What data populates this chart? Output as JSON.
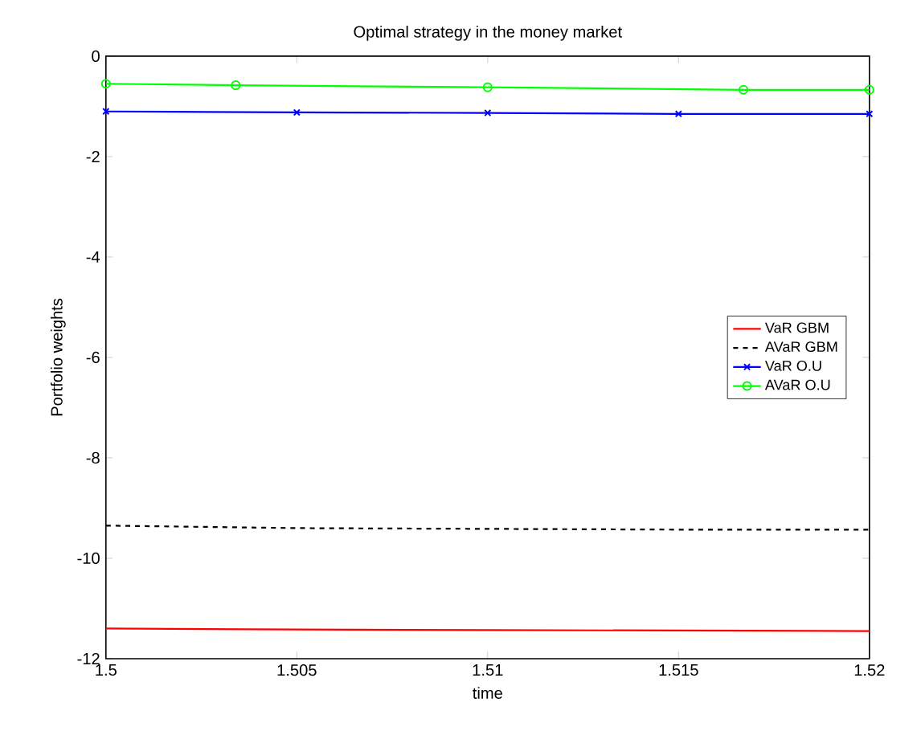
{
  "chart_data": {
    "type": "line",
    "title": "Optimal strategy in the money market",
    "xlabel": "time",
    "ylabel": "Portfolio weights",
    "xlim": [
      1.5,
      1.52
    ],
    "xticks": [
      1.5,
      1.505,
      1.51,
      1.515,
      1.52
    ],
    "ylim": [
      -12,
      0
    ],
    "yticks": [
      -12,
      -10,
      -8,
      -6,
      -4,
      -2,
      0
    ],
    "legend": "right",
    "grid": false,
    "series": [
      {
        "name": "VaR GBM",
        "color": "#ff0000",
        "line_style": "solid",
        "marker": "none",
        "x": [
          1.5,
          1.505,
          1.51,
          1.515,
          1.52
        ],
        "values": [
          -11.4,
          -11.42,
          -11.43,
          -11.44,
          -11.45
        ]
      },
      {
        "name": "AVaR GBM",
        "color": "#000000",
        "line_style": "dashed",
        "marker": "none",
        "x": [
          1.5,
          1.505,
          1.515,
          1.52
        ],
        "values": [
          -9.35,
          -9.4,
          -9.43,
          -9.43
        ]
      },
      {
        "name": "VaR O.U",
        "color": "#0000ff",
        "line_style": "solid",
        "marker": "cross",
        "x": [
          1.5,
          1.505,
          1.51,
          1.515,
          1.52
        ],
        "values": [
          -1.1,
          -1.12,
          -1.13,
          -1.15,
          -1.15
        ]
      },
      {
        "name": "AVaR O.U",
        "color": "#00ff00",
        "line_style": "solid",
        "marker": "circle",
        "x": [
          1.5,
          1.5034,
          1.51,
          1.5167,
          1.52
        ],
        "values": [
          -0.55,
          -0.58,
          -0.62,
          -0.67,
          -0.67
        ]
      }
    ]
  }
}
